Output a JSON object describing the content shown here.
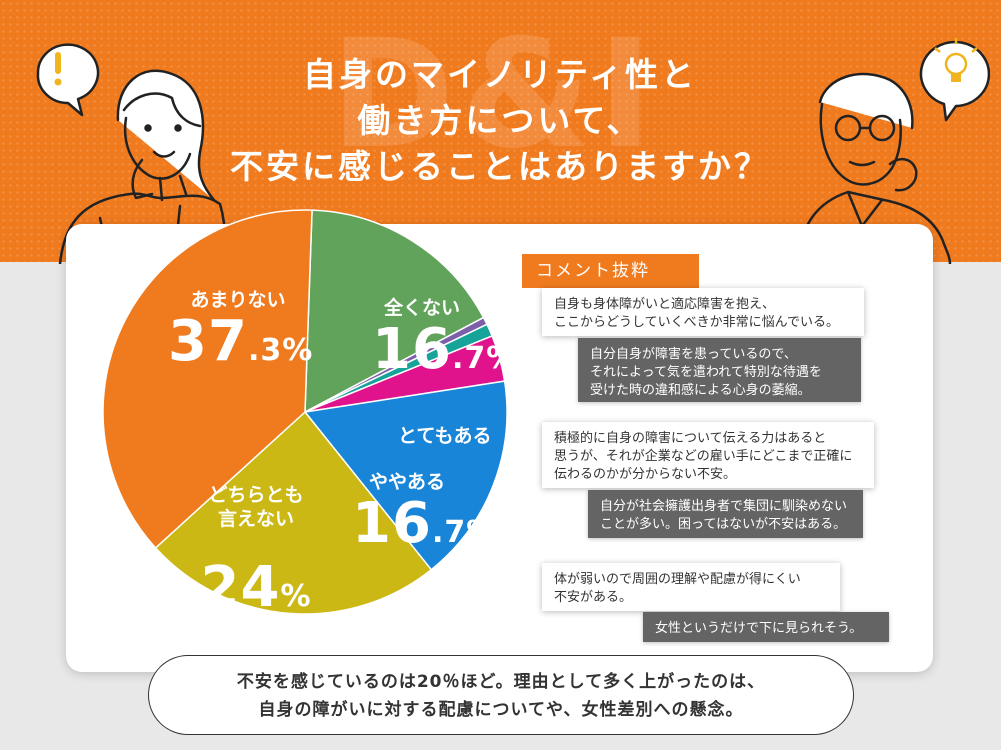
{
  "header": {
    "watermark": "D&I",
    "title_lines": [
      "自身のマイノリティ性と",
      "働き方について、",
      "不安に感じることはありますか？"
    ]
  },
  "colors": {
    "brand_orange": "#f07a1e",
    "gray_box": "#646464"
  },
  "icons": {
    "left_bubble": "exclamation-icon",
    "right_bubble": "lightbulb-icon"
  },
  "chart_data": {
    "type": "pie",
    "start_angle_deg": -88,
    "slices": [
      {
        "label": "全くない",
        "value": 16.7,
        "int": "16",
        "dec": "7",
        "color": "#61a35b"
      },
      {
        "label": "",
        "value": 0.6,
        "color": "#7c5fa8"
      },
      {
        "label": "",
        "value": 1.0,
        "color": "#15a39a"
      },
      {
        "label": "とてもある",
        "value": 3.7,
        "color": "#e0138c"
      },
      {
        "label": "ややある",
        "value": 16.7,
        "int": "16",
        "dec": "7",
        "color": "#1985d8"
      },
      {
        "label": "どちらとも\n言えない",
        "value": 24,
        "int": "24",
        "color": "#ccb814"
      },
      {
        "label": "あまりない",
        "value": 37.3,
        "int": "37",
        "dec": "3",
        "color": "#f07a1e"
      }
    ]
  },
  "comments": {
    "tag": "コメント抜粋",
    "items": [
      {
        "text": "自身も身体障がいと適応障害を抱え、\nここからどうしていくべきか非常に悩んでいる。",
        "style": "w"
      },
      {
        "text": "自分自身が障害を患っているので、\nそれによって気を遣われて特別な待遇を\n受けた時の違和感による心身の萎縮。",
        "style": "g"
      },
      {
        "text": "積極的に自身の障害について伝える力はあると\n思うが、それが企業などの雇い手にどこまで正確に\n伝わるのかが分からない不安。",
        "style": "w"
      },
      {
        "text": "自分が社会擁護出身者で集団に馴染めない\nことが多い。困ってはないが不安はある。",
        "style": "g"
      },
      {
        "text": "体が弱いので周囲の理解や配慮が得にくい\n不安がある。",
        "style": "w"
      },
      {
        "text": "女性というだけで下に見られそう。",
        "style": "g"
      }
    ]
  },
  "summary": {
    "lines": [
      "不安を感じているのは20％ほど。理由として多く上がったのは、",
      "自身の障がいに対する配慮についてや、女性差別への懸念。"
    ]
  },
  "percent_sign": "%"
}
